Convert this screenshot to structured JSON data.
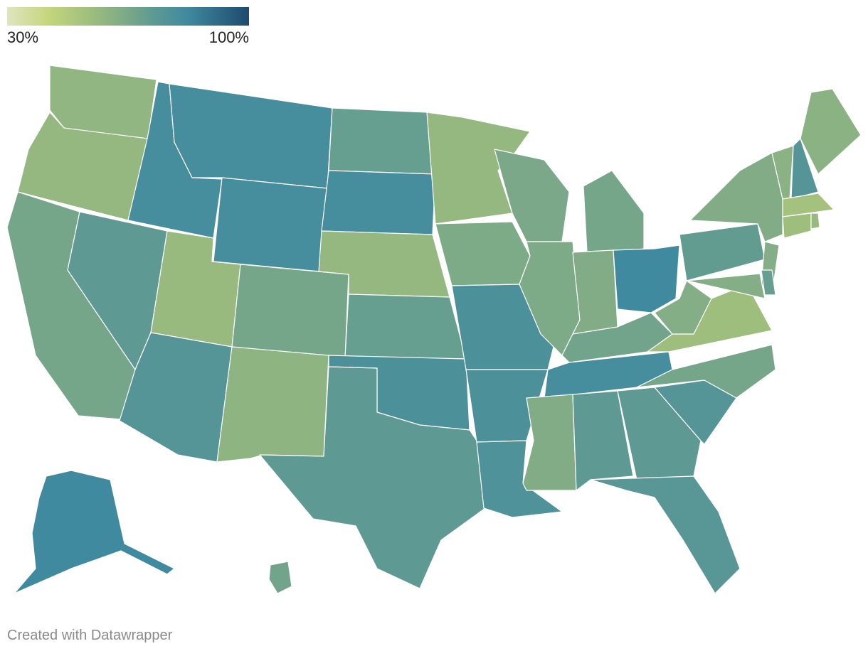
{
  "map": {
    "type": "choropleth",
    "legend_ticks": [
      {
        "value": 30,
        "label": "30%"
      },
      {
        "value": 100,
        "label": "100%"
      }
    ],
    "color_stops": [
      {
        "value": 30,
        "color": "#e0e4c0"
      },
      {
        "value": 42,
        "color": "#c4d67c"
      },
      {
        "value": 55,
        "color": "#9bbc7e"
      },
      {
        "value": 65,
        "color": "#7aa888"
      },
      {
        "value": 72,
        "color": "#5e9a93"
      },
      {
        "value": 82,
        "color": "#408a9f"
      },
      {
        "value": 100,
        "color": "#1e4a6e"
      }
    ],
    "values": [
      58,
      57,
      66,
      80,
      72,
      80,
      80,
      56,
      75,
      66,
      59,
      70,
      80,
      57,
      70,
      78,
      72,
      57,
      64,
      78,
      78,
      77,
      65,
      64,
      66,
      63,
      82,
      67,
      80,
      63,
      72,
      72,
      74,
      75,
      66,
      54,
      62,
      71,
      63,
      62,
      62,
      70,
      60,
      75,
      60,
      52,
      54,
      56,
      82,
      67
    ]
  },
  "credit": "Created with Datawrapper"
}
